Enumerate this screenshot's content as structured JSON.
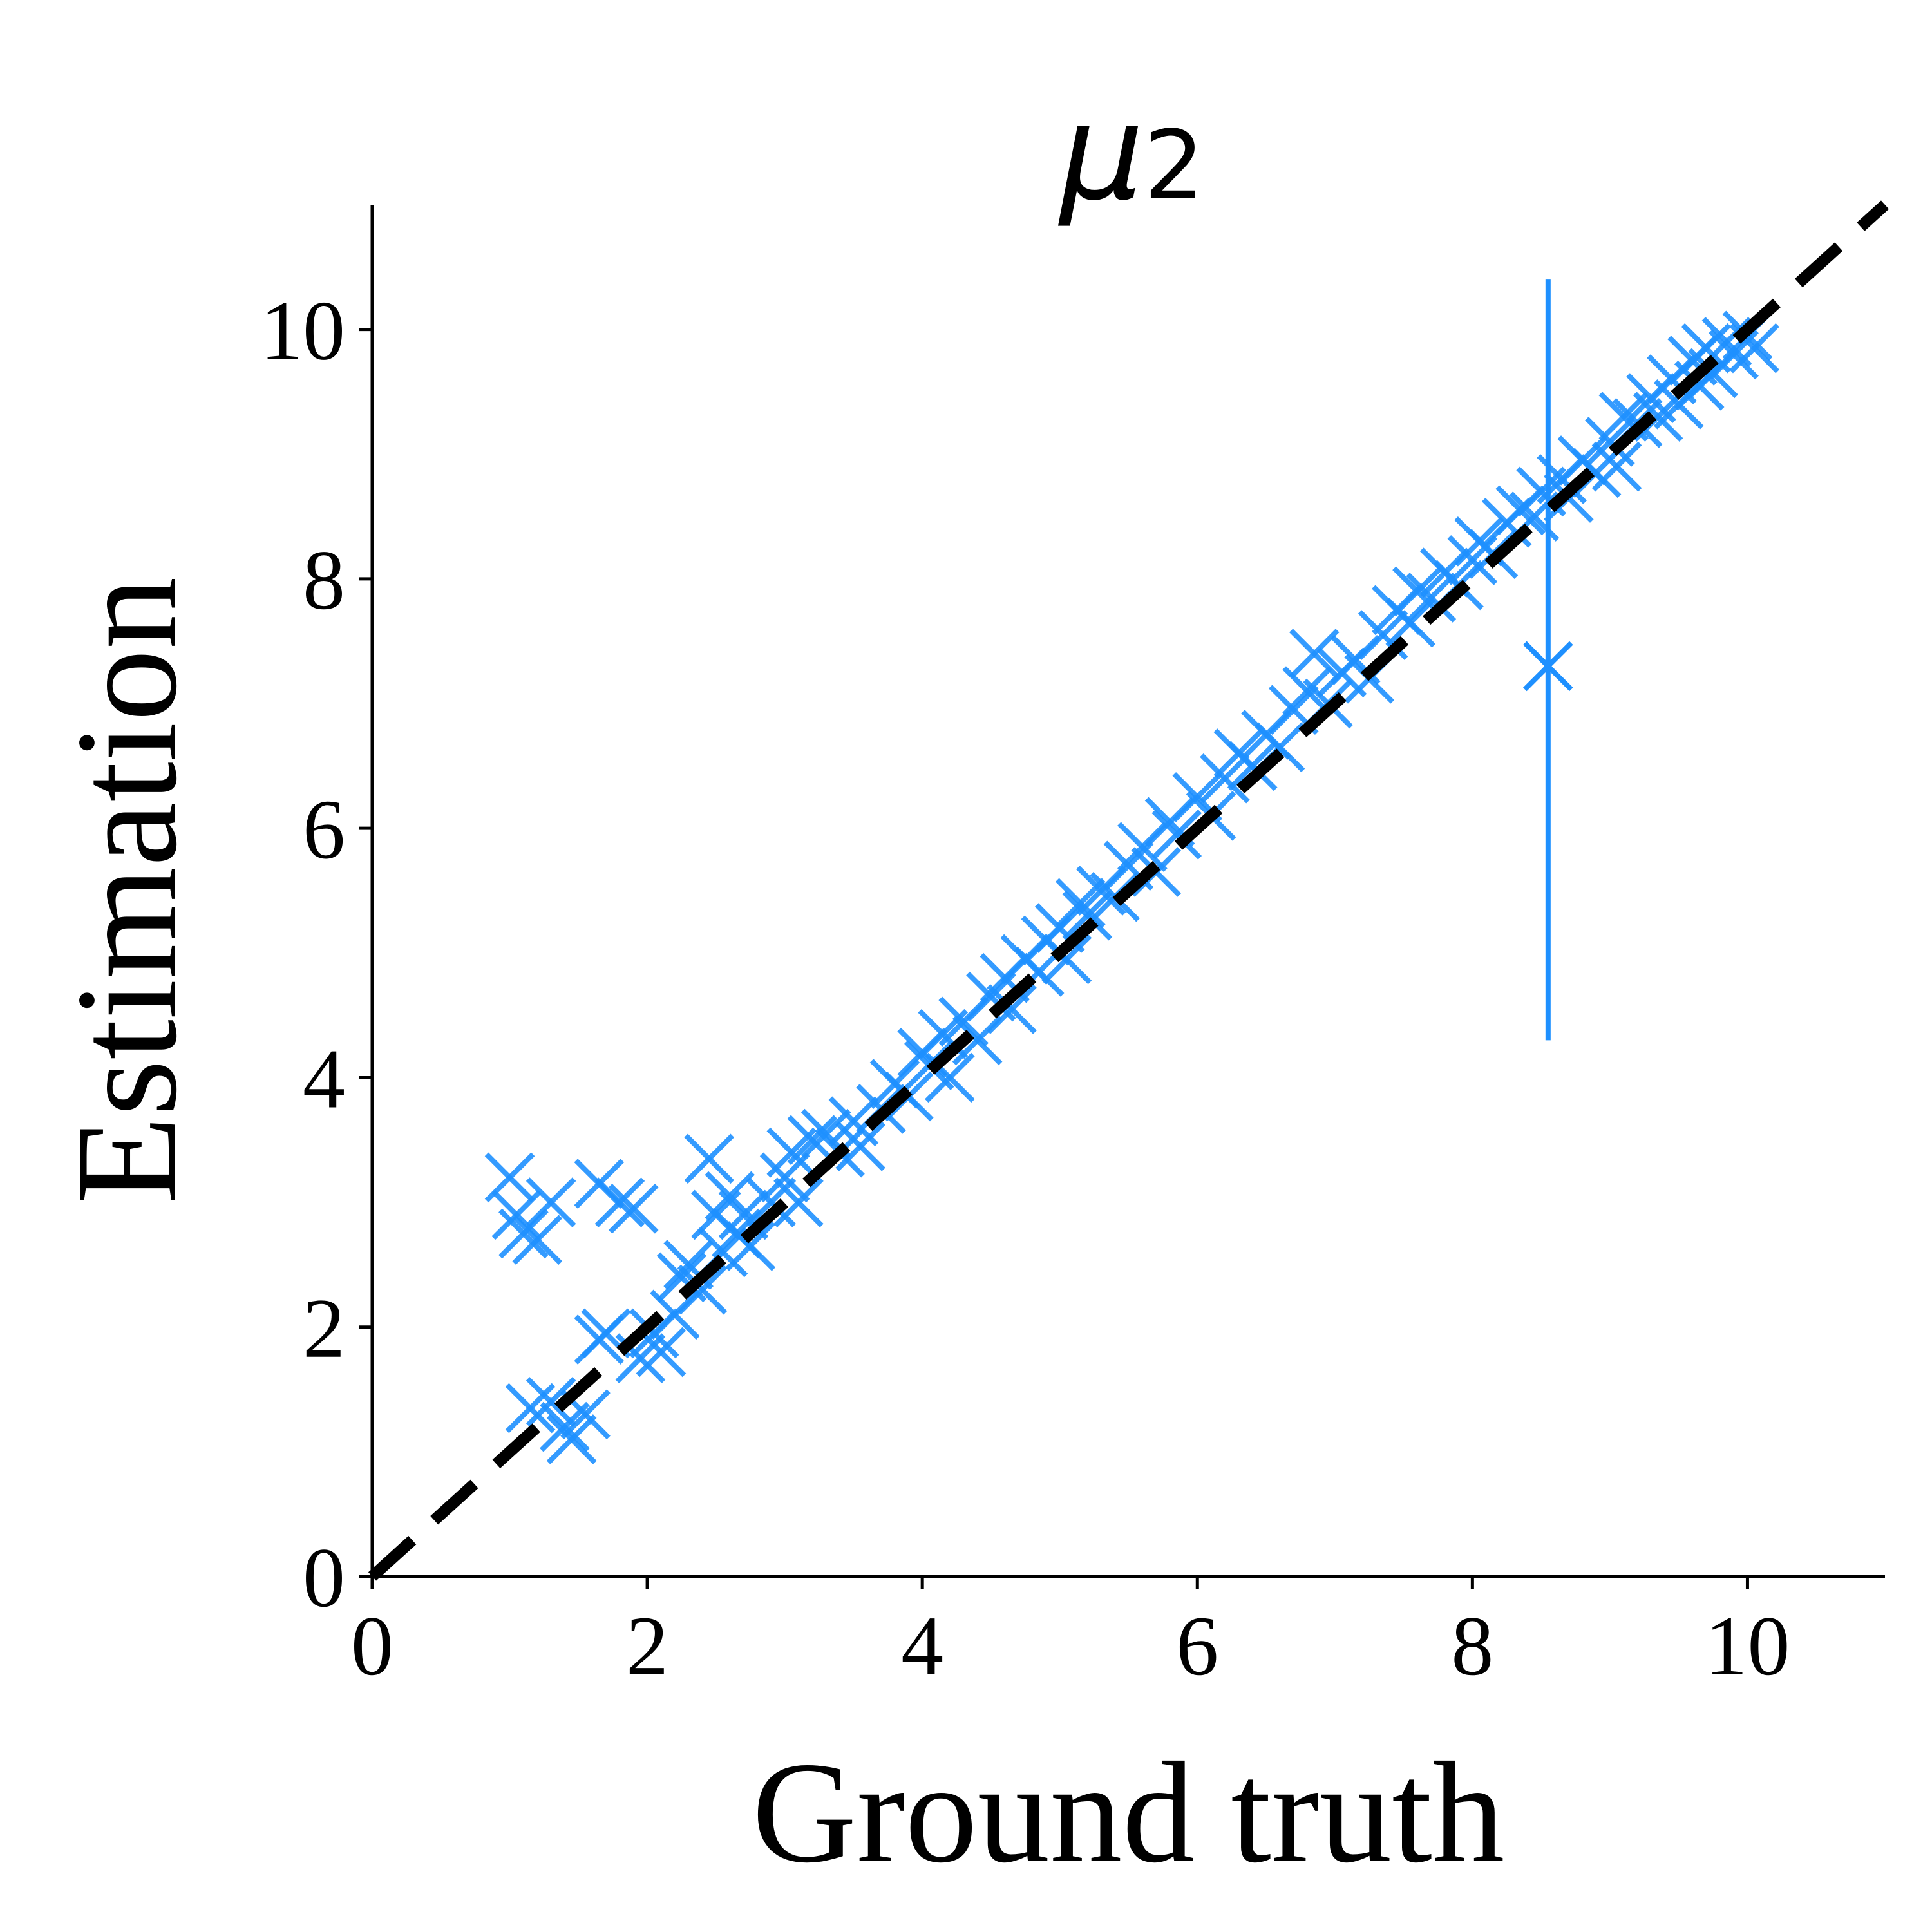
{
  "chart_data": {
    "type": "scatter",
    "title": "μ",
    "title_subscript": "2",
    "xlabel": "Ground truth",
    "ylabel": "Estimation",
    "xlim": [
      0,
      11
    ],
    "ylim": [
      0,
      11
    ],
    "xticks": [
      0,
      2,
      4,
      6,
      8,
      10
    ],
    "yticks": [
      0,
      2,
      4,
      6,
      8,
      10
    ],
    "grid": false,
    "legend": "none",
    "marker": "x",
    "color": "#1e90ff",
    "reference_line": {
      "style": "dashed",
      "color": "#000000",
      "from": [
        0,
        0
      ],
      "to": [
        11,
        11
      ]
    },
    "series": [
      {
        "points": [
          [
            1.0,
            3.2
          ],
          [
            1.05,
            2.9
          ],
          [
            1.1,
            2.75
          ],
          [
            1.2,
            2.7
          ],
          [
            1.3,
            3.0
          ],
          [
            1.65,
            3.15
          ],
          [
            1.8,
            3.0
          ],
          [
            1.9,
            2.95
          ],
          [
            2.45,
            3.35
          ],
          [
            1.15,
            1.35
          ],
          [
            1.3,
            1.4
          ],
          [
            1.4,
            1.2
          ],
          [
            1.45,
            1.1
          ],
          [
            1.55,
            1.3
          ],
          [
            1.65,
            1.9
          ],
          [
            1.7,
            1.95
          ],
          [
            1.95,
            1.75
          ],
          [
            2.05,
            1.95
          ],
          [
            2.1,
            1.8
          ],
          [
            2.2,
            2.1
          ],
          [
            2.25,
            2.4
          ],
          [
            2.3,
            2.5
          ],
          [
            2.4,
            2.3
          ],
          [
            2.5,
            2.9
          ],
          [
            2.55,
            2.6
          ],
          [
            2.6,
            3.05
          ],
          [
            2.65,
            2.75
          ],
          [
            2.7,
            2.9
          ],
          [
            2.75,
            2.65
          ],
          [
            2.9,
            3.0
          ],
          [
            3.0,
            3.2
          ],
          [
            3.05,
            3.4
          ],
          [
            3.1,
            3.0
          ],
          [
            3.2,
            3.5
          ],
          [
            3.3,
            3.55
          ],
          [
            3.4,
            3.4
          ],
          [
            3.5,
            3.65
          ],
          [
            3.55,
            3.45
          ],
          [
            3.7,
            3.75
          ],
          [
            3.8,
            3.95
          ],
          [
            3.9,
            3.85
          ],
          [
            4.0,
            4.2
          ],
          [
            4.05,
            4.1
          ],
          [
            4.15,
            4.35
          ],
          [
            4.2,
            4.0
          ],
          [
            4.3,
            4.45
          ],
          [
            4.4,
            4.3
          ],
          [
            4.5,
            4.65
          ],
          [
            4.6,
            4.8
          ],
          [
            4.65,
            4.55
          ],
          [
            4.75,
            4.95
          ],
          [
            4.85,
            4.85
          ],
          [
            4.9,
            5.1
          ],
          [
            5.0,
            5.2
          ],
          [
            5.05,
            4.95
          ],
          [
            5.15,
            5.4
          ],
          [
            5.2,
            5.3
          ],
          [
            5.3,
            5.5
          ],
          [
            5.4,
            5.45
          ],
          [
            5.5,
            5.7
          ],
          [
            5.6,
            5.85
          ],
          [
            5.7,
            5.65
          ],
          [
            5.8,
            6.05
          ],
          [
            5.85,
            5.95
          ],
          [
            6.0,
            6.25
          ],
          [
            6.1,
            6.1
          ],
          [
            6.2,
            6.4
          ],
          [
            6.3,
            6.6
          ],
          [
            6.4,
            6.5
          ],
          [
            6.5,
            6.75
          ],
          [
            6.6,
            6.65
          ],
          [
            6.7,
            6.95
          ],
          [
            6.8,
            7.1
          ],
          [
            6.85,
            7.4
          ],
          [
            6.95,
            7.0
          ],
          [
            7.05,
            7.25
          ],
          [
            7.15,
            7.35
          ],
          [
            7.25,
            7.2
          ],
          [
            7.35,
            7.55
          ],
          [
            7.45,
            7.75
          ],
          [
            7.55,
            7.65
          ],
          [
            7.6,
            7.9
          ],
          [
            7.7,
            7.85
          ],
          [
            7.8,
            8.05
          ],
          [
            7.9,
            7.95
          ],
          [
            8.0,
            8.15
          ],
          [
            8.05,
            8.3
          ],
          [
            8.15,
            8.2
          ],
          [
            8.25,
            8.45
          ],
          [
            8.35,
            8.55
          ],
          [
            8.45,
            8.5
          ],
          [
            8.5,
            8.7
          ],
          [
            8.65,
            8.8
          ],
          [
            8.7,
            8.65
          ],
          [
            8.8,
            8.95
          ],
          [
            8.9,
            8.85
          ],
          [
            9.0,
            9.1
          ],
          [
            9.05,
            8.9
          ],
          [
            9.1,
            9.3
          ],
          [
            9.2,
            9.25
          ],
          [
            9.3,
            9.45
          ],
          [
            9.35,
            9.3
          ],
          [
            9.45,
            9.6
          ],
          [
            9.5,
            9.4
          ],
          [
            9.6,
            9.75
          ],
          [
            9.65,
            9.55
          ],
          [
            9.7,
            9.85
          ],
          [
            9.75,
            9.65
          ],
          [
            9.85,
            9.9
          ],
          [
            9.9,
            9.8
          ],
          [
            10.0,
            9.95
          ],
          [
            10.05,
            9.85
          ]
        ]
      }
    ],
    "highlight_point": {
      "x": 8.55,
      "y": 7.3,
      "error_low": 4.3,
      "error_high": 10.4
    }
  }
}
